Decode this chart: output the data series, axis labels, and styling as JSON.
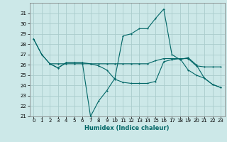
{
  "title": "",
  "xlabel": "Humidex (Indice chaleur)",
  "bg_color": "#cce8e8",
  "grid_color": "#aacccc",
  "line_color": "#006666",
  "xlim": [
    -0.5,
    23.5
  ],
  "ylim": [
    21,
    32
  ],
  "yticks": [
    21,
    22,
    23,
    24,
    25,
    26,
    27,
    28,
    29,
    30,
    31
  ],
  "xticks": [
    0,
    1,
    2,
    3,
    4,
    5,
    6,
    7,
    8,
    9,
    10,
    11,
    12,
    13,
    14,
    15,
    16,
    17,
    18,
    19,
    20,
    21,
    22,
    23
  ],
  "line1_x": [
    0,
    1,
    2,
    3,
    4,
    5,
    6,
    7,
    8,
    9,
    10,
    11,
    12,
    13,
    14,
    15,
    16,
    17,
    18,
    19,
    20,
    21,
    22,
    23
  ],
  "line1_y": [
    28.5,
    27.0,
    26.1,
    25.7,
    26.2,
    26.2,
    26.2,
    21.0,
    22.5,
    23.5,
    24.7,
    28.8,
    29.0,
    29.5,
    29.5,
    30.5,
    31.4,
    27.0,
    26.5,
    26.7,
    26.0,
    24.7,
    24.1,
    23.8
  ],
  "line2_x": [
    0,
    1,
    2,
    3,
    4,
    5,
    6,
    7,
    8,
    9,
    10,
    11,
    12,
    13,
    14,
    15,
    16,
    17,
    18,
    19,
    20,
    21,
    22,
    23
  ],
  "line2_y": [
    28.5,
    27.0,
    26.1,
    26.1,
    26.1,
    26.1,
    26.1,
    26.1,
    26.1,
    26.1,
    26.1,
    26.1,
    26.1,
    26.1,
    26.1,
    26.4,
    26.6,
    26.6,
    26.6,
    26.6,
    25.9,
    25.8,
    25.8,
    25.8
  ],
  "line3_x": [
    2,
    3,
    4,
    5,
    6,
    7,
    8,
    9,
    10,
    11,
    12,
    13,
    14,
    15,
    16,
    17,
    18,
    19,
    20,
    21,
    22,
    23
  ],
  "line3_y": [
    26.1,
    25.7,
    26.2,
    26.2,
    26.2,
    26.1,
    25.9,
    25.5,
    24.6,
    24.3,
    24.2,
    24.2,
    24.2,
    24.4,
    26.3,
    26.5,
    26.6,
    25.5,
    25.0,
    24.7,
    24.1,
    23.8
  ],
  "xlabel_fontsize": 6.0,
  "tick_fontsize": 5.0,
  "marker_size": 2.0,
  "linewidth": 0.8
}
